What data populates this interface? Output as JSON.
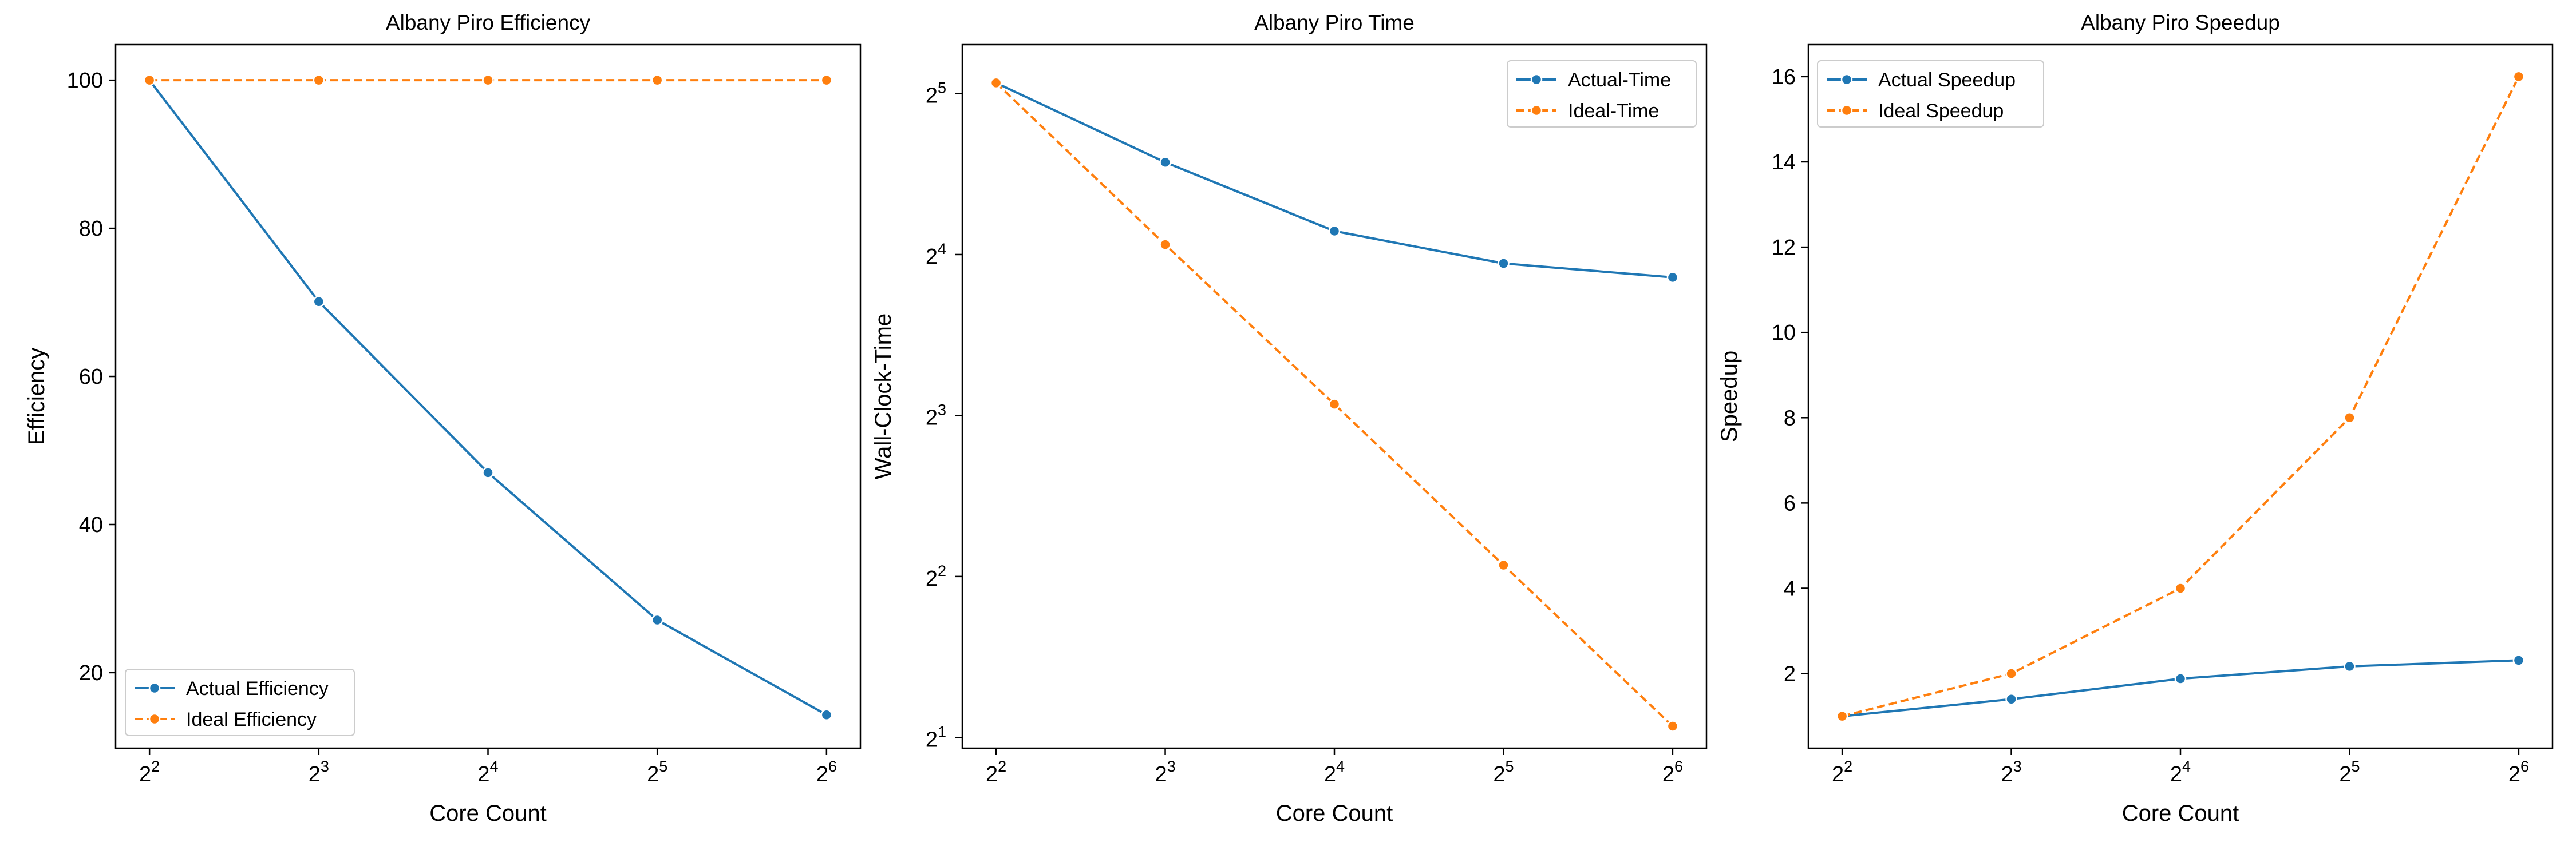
{
  "chart_data": [
    {
      "type": "line",
      "title": "Albany Piro Efficiency",
      "xlabel": "Core Count",
      "ylabel": "Efficiency",
      "x": [
        4,
        8,
        16,
        32,
        64
      ],
      "x_tick_labels": [
        {
          "base": "2",
          "exp": "2"
        },
        {
          "base": "2",
          "exp": "3"
        },
        {
          "base": "2",
          "exp": "4"
        },
        {
          "base": "2",
          "exp": "5"
        },
        {
          "base": "2",
          "exp": "6"
        }
      ],
      "x_scale": "log2",
      "y_scale": "linear",
      "ylim": [
        9.8,
        104.8
      ],
      "y_ticks": [
        20,
        40,
        60,
        80,
        100
      ],
      "y_tick_labels": [
        "20",
        "40",
        "60",
        "80",
        "100"
      ],
      "grid": false,
      "legend_position": "lower-left",
      "series": [
        {
          "name": "Actual Efficiency",
          "color": "#1f77b4",
          "style": "solid",
          "values": [
            100,
            70.1,
            47.0,
            27.1,
            14.3
          ]
        },
        {
          "name": "Ideal Efficiency",
          "color": "#ff7f0e",
          "style": "dashed",
          "values": [
            100,
            100,
            100,
            100,
            100
          ]
        }
      ]
    },
    {
      "type": "line",
      "title": "Albany Piro Time",
      "xlabel": "Core Count",
      "ylabel": "Wall-Clock-Time",
      "x": [
        4,
        8,
        16,
        32,
        64
      ],
      "x_tick_labels": [
        {
          "base": "2",
          "exp": "2"
        },
        {
          "base": "2",
          "exp": "3"
        },
        {
          "base": "2",
          "exp": "4"
        },
        {
          "base": "2",
          "exp": "5"
        },
        {
          "base": "2",
          "exp": "6"
        }
      ],
      "x_scale": "log2",
      "y_scale": "log2",
      "ylim": [
        1.91,
        39.5
      ],
      "y_ticks": [
        2,
        4,
        8,
        16,
        32
      ],
      "y_tick_labels": [
        {
          "base": "2",
          "exp": "1"
        },
        {
          "base": "2",
          "exp": "2"
        },
        {
          "base": "2",
          "exp": "3"
        },
        {
          "base": "2",
          "exp": "4"
        },
        {
          "base": "2",
          "exp": "5"
        }
      ],
      "grid": false,
      "legend_position": "upper-right",
      "series": [
        {
          "name": "Actual-Time",
          "color": "#1f77b4",
          "style": "solid",
          "values": [
            33.5,
            23.8,
            17.7,
            15.4,
            14.5
          ]
        },
        {
          "name": "Ideal-Time",
          "color": "#ff7f0e",
          "style": "dashed",
          "values": [
            33.5,
            16.7,
            8.4,
            4.2,
            2.1
          ]
        }
      ]
    },
    {
      "type": "line",
      "title": "Albany Piro Speedup",
      "xlabel": "Core Count",
      "ylabel": "Speedup",
      "x": [
        4,
        8,
        16,
        32,
        64
      ],
      "x_tick_labels": [
        {
          "base": "2",
          "exp": "2"
        },
        {
          "base": "2",
          "exp": "3"
        },
        {
          "base": "2",
          "exp": "4"
        },
        {
          "base": "2",
          "exp": "5"
        },
        {
          "base": "2",
          "exp": "6"
        }
      ],
      "x_scale": "log2",
      "y_scale": "linear",
      "ylim": [
        0.25,
        16.75
      ],
      "y_ticks": [
        2,
        4,
        6,
        8,
        10,
        12,
        14,
        16
      ],
      "y_tick_labels": [
        "2",
        "4",
        "6",
        "8",
        "10",
        "12",
        "14",
        "16"
      ],
      "grid": false,
      "legend_position": "upper-left",
      "series": [
        {
          "name": "Actual Speedup",
          "color": "#1f77b4",
          "style": "solid",
          "values": [
            1.0,
            1.4,
            1.88,
            2.17,
            2.31
          ]
        },
        {
          "name": "Ideal Speedup",
          "color": "#ff7f0e",
          "style": "dashed",
          "values": [
            1,
            2,
            4,
            8,
            16
          ]
        }
      ]
    }
  ]
}
